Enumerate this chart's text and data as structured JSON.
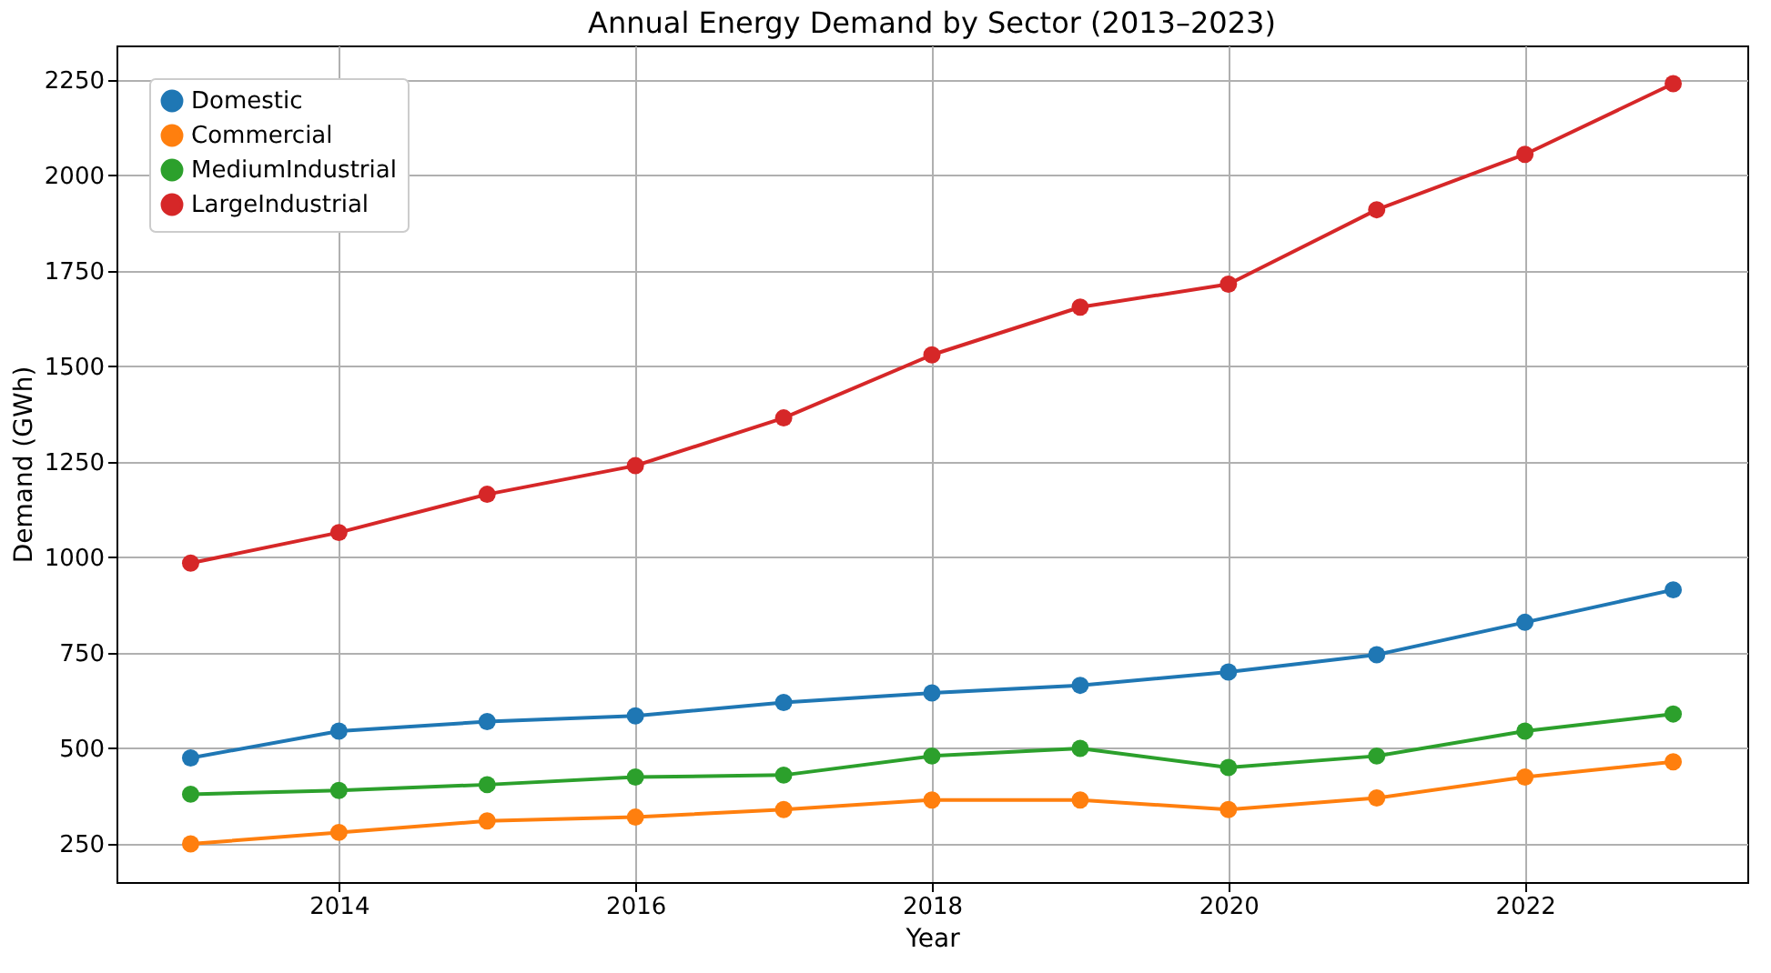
{
  "chart_data": {
    "type": "line",
    "title": "Annual Energy Demand by Sector (2013–2023)",
    "xlabel": "Year",
    "ylabel": "Demand (GWh)",
    "x": [
      2013,
      2014,
      2015,
      2016,
      2017,
      2018,
      2019,
      2020,
      2021,
      2022,
      2023
    ],
    "series": [
      {
        "name": "Domestic",
        "color": "#1f77b4",
        "values": [
          475,
          545,
          570,
          585,
          620,
          645,
          665,
          700,
          745,
          830,
          915
        ]
      },
      {
        "name": "Commercial",
        "color": "#ff7f0e",
        "values": [
          250,
          280,
          310,
          320,
          340,
          365,
          365,
          340,
          370,
          425,
          465
        ]
      },
      {
        "name": "MediumIndustrial",
        "color": "#2ca02c",
        "values": [
          380,
          390,
          405,
          425,
          430,
          480,
          500,
          450,
          480,
          545,
          590
        ]
      },
      {
        "name": "LargeIndustrial",
        "color": "#d62728",
        "values": [
          985,
          1065,
          1165,
          1240,
          1365,
          1530,
          1655,
          1715,
          1910,
          2055,
          2240
        ]
      }
    ],
    "xlim": [
      2012.5,
      2023.5
    ],
    "xticks": [
      2014,
      2016,
      2018,
      2020,
      2022
    ],
    "ylim": [
      150,
      2340
    ],
    "yticks": [
      250,
      500,
      750,
      1000,
      1250,
      1500,
      1750,
      2000,
      2250
    ],
    "grid": true,
    "legend": "top left",
    "marker": "circle",
    "line_style": "solid"
  }
}
